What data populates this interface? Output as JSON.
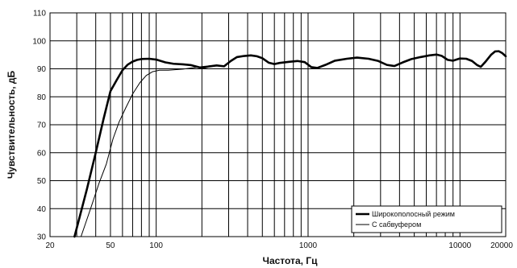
{
  "chart_data": {
    "type": "line",
    "title": "",
    "xlabel": "Частота, Гц",
    "ylabel": "Чувствительность, дБ",
    "x_scale": "log",
    "xlim": [
      20,
      20000
    ],
    "ylim": [
      30,
      110
    ],
    "grid": true,
    "legend_position": "bottom-right",
    "x_ticks": [
      {
        "value": 20,
        "label": "20"
      },
      {
        "value": 50,
        "label": "50"
      },
      {
        "value": 100,
        "label": "100"
      },
      {
        "value": 1000,
        "label": "1000"
      },
      {
        "value": 10000,
        "label": "10000"
      },
      {
        "value": 20000,
        "label": "20000"
      }
    ],
    "y_ticks": [
      {
        "value": 30,
        "label": "30"
      },
      {
        "value": 40,
        "label": "40"
      },
      {
        "value": 50,
        "label": "50"
      },
      {
        "value": 60,
        "label": "60"
      },
      {
        "value": 70,
        "label": "70"
      },
      {
        "value": 80,
        "label": "80"
      },
      {
        "value": 90,
        "label": "90"
      },
      {
        "value": 100,
        "label": "100"
      },
      {
        "value": 110,
        "label": "110"
      }
    ],
    "series": [
      {
        "name": "Широкополосный режим",
        "color": "#000000",
        "weight": "bold",
        "points": [
          [
            29,
            30
          ],
          [
            35,
            47
          ],
          [
            40,
            60
          ],
          [
            45,
            72
          ],
          [
            50,
            82
          ],
          [
            55,
            86
          ],
          [
            60,
            89.5
          ],
          [
            65,
            91.5
          ],
          [
            70,
            92.6
          ],
          [
            75,
            93.2
          ],
          [
            80,
            93.5
          ],
          [
            90,
            93.6
          ],
          [
            100,
            93.3
          ],
          [
            115,
            92.3
          ],
          [
            130,
            91.8
          ],
          [
            150,
            91.6
          ],
          [
            170,
            91.3
          ],
          [
            200,
            90.3
          ],
          [
            220,
            90.8
          ],
          [
            250,
            91.2
          ],
          [
            280,
            90.9
          ],
          [
            310,
            92.8
          ],
          [
            340,
            94.2
          ],
          [
            380,
            94.6
          ],
          [
            420,
            94.8
          ],
          [
            460,
            94.5
          ],
          [
            500,
            93.8
          ],
          [
            550,
            92.2
          ],
          [
            600,
            91.7
          ],
          [
            650,
            92.1
          ],
          [
            750,
            92.5
          ],
          [
            850,
            92.8
          ],
          [
            950,
            92.4
          ],
          [
            1050,
            90.6
          ],
          [
            1150,
            90.3
          ],
          [
            1300,
            91.4
          ],
          [
            1500,
            92.9
          ],
          [
            1800,
            93.6
          ],
          [
            2100,
            94.0
          ],
          [
            2500,
            93.6
          ],
          [
            2900,
            92.8
          ],
          [
            3300,
            91.4
          ],
          [
            3700,
            91.0
          ],
          [
            4200,
            92.3
          ],
          [
            4800,
            93.5
          ],
          [
            5500,
            94.2
          ],
          [
            6300,
            94.8
          ],
          [
            7000,
            95.1
          ],
          [
            7600,
            94.6
          ],
          [
            8300,
            93.2
          ],
          [
            9000,
            92.9
          ],
          [
            10000,
            93.7
          ],
          [
            11000,
            93.6
          ],
          [
            12000,
            92.8
          ],
          [
            13000,
            91.3
          ],
          [
            13700,
            90.7
          ],
          [
            14700,
            92.5
          ],
          [
            16000,
            95.0
          ],
          [
            17000,
            96.2
          ],
          [
            18000,
            96.3
          ],
          [
            19000,
            95.6
          ],
          [
            20000,
            94.5
          ]
        ]
      },
      {
        "name": "С сабвуфером",
        "color": "#000000",
        "weight": "thin",
        "points": [
          [
            32,
            30
          ],
          [
            37,
            40
          ],
          [
            42,
            49
          ],
          [
            47,
            56
          ],
          [
            52,
            65
          ],
          [
            57,
            71
          ],
          [
            63,
            76
          ],
          [
            70,
            81
          ],
          [
            78,
            85
          ],
          [
            86,
            87.6
          ],
          [
            95,
            89
          ],
          [
            105,
            89.5
          ],
          [
            120,
            89.5
          ],
          [
            150,
            89.9
          ],
          [
            200,
            90.8
          ],
          [
            240,
            91.2
          ],
          [
            280,
            91.0
          ]
        ]
      }
    ]
  }
}
